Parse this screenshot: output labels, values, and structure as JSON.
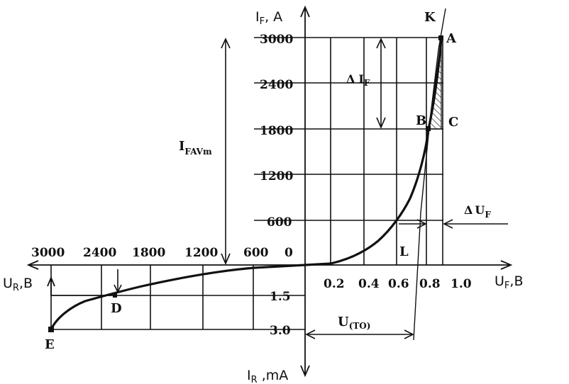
{
  "axes": {
    "y_pos": {
      "main": "I",
      "sub": "F",
      "unit": ", A"
    },
    "y_neg": {
      "main": "I",
      "sub": "R",
      "unit": " ,mA"
    },
    "x_pos": {
      "main": "U",
      "sub": "F",
      "unit": ",B"
    },
    "x_neg": {
      "main": "U",
      "sub": "R",
      "unit": ",B"
    }
  },
  "ticks": {
    "if": [
      "3000",
      "2400",
      "1800",
      "1200",
      "600",
      "0"
    ],
    "uf": [
      "0.2",
      "0.4",
      "0.6",
      "0.8",
      "1.0"
    ],
    "ur": [
      "3000",
      "2400",
      "1800",
      "1200",
      "600"
    ],
    "ir": [
      "1.5",
      "3.0"
    ]
  },
  "points": {
    "A": "A",
    "B": "B",
    "C": "C",
    "D": "D",
    "E": "E",
    "K": "K",
    "L": "L"
  },
  "annotations": {
    "delta_if": {
      "delta": "Δ",
      "main": "I",
      "sub": "F"
    },
    "delta_uf": {
      "delta": "Δ",
      "main": "U",
      "sub": "F"
    },
    "ifavm": {
      "main": "I",
      "sub": "FAVm"
    },
    "uto": {
      "main": "U",
      "sub": "(TO)"
    }
  }
}
